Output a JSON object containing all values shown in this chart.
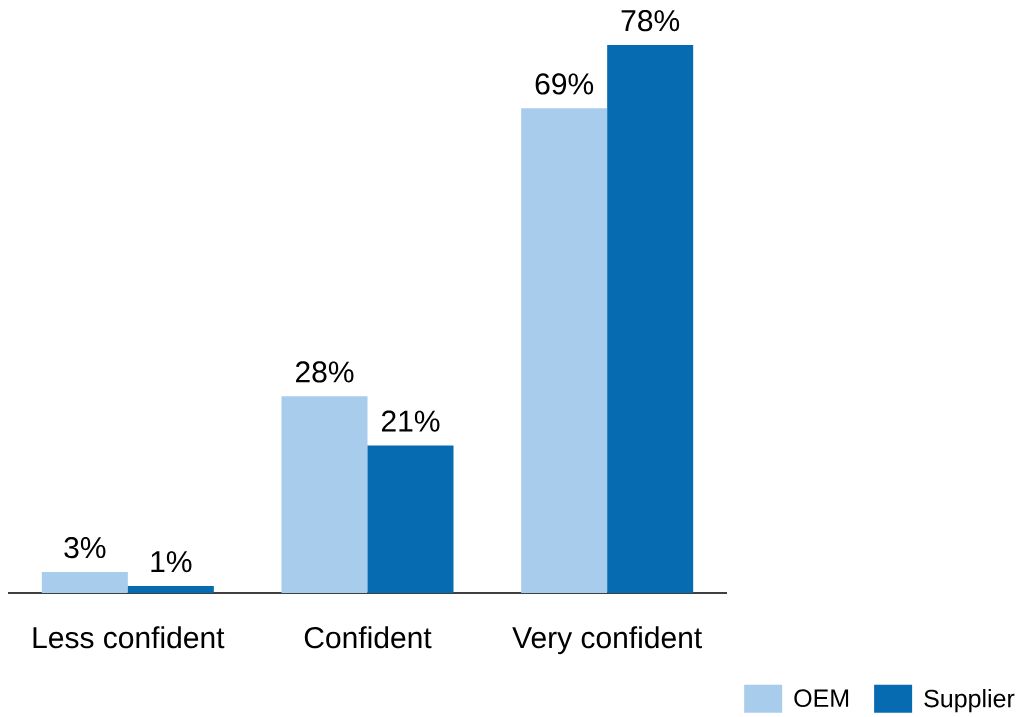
{
  "chart_data": {
    "type": "bar",
    "categories": [
      "Less confident",
      "Confident",
      "Very confident"
    ],
    "series": [
      {
        "name": "OEM",
        "color": "#a8ccec",
        "values": [
          3,
          28,
          69
        ],
        "value_labels": [
          "3%",
          "28%",
          "69%"
        ]
      },
      {
        "name": "Supplier",
        "color": "#076bb1",
        "values": [
          1,
          21,
          78
        ],
        "value_labels": [
          "1%",
          "21%",
          "78%"
        ]
      }
    ],
    "legend": "bottom right"
  }
}
